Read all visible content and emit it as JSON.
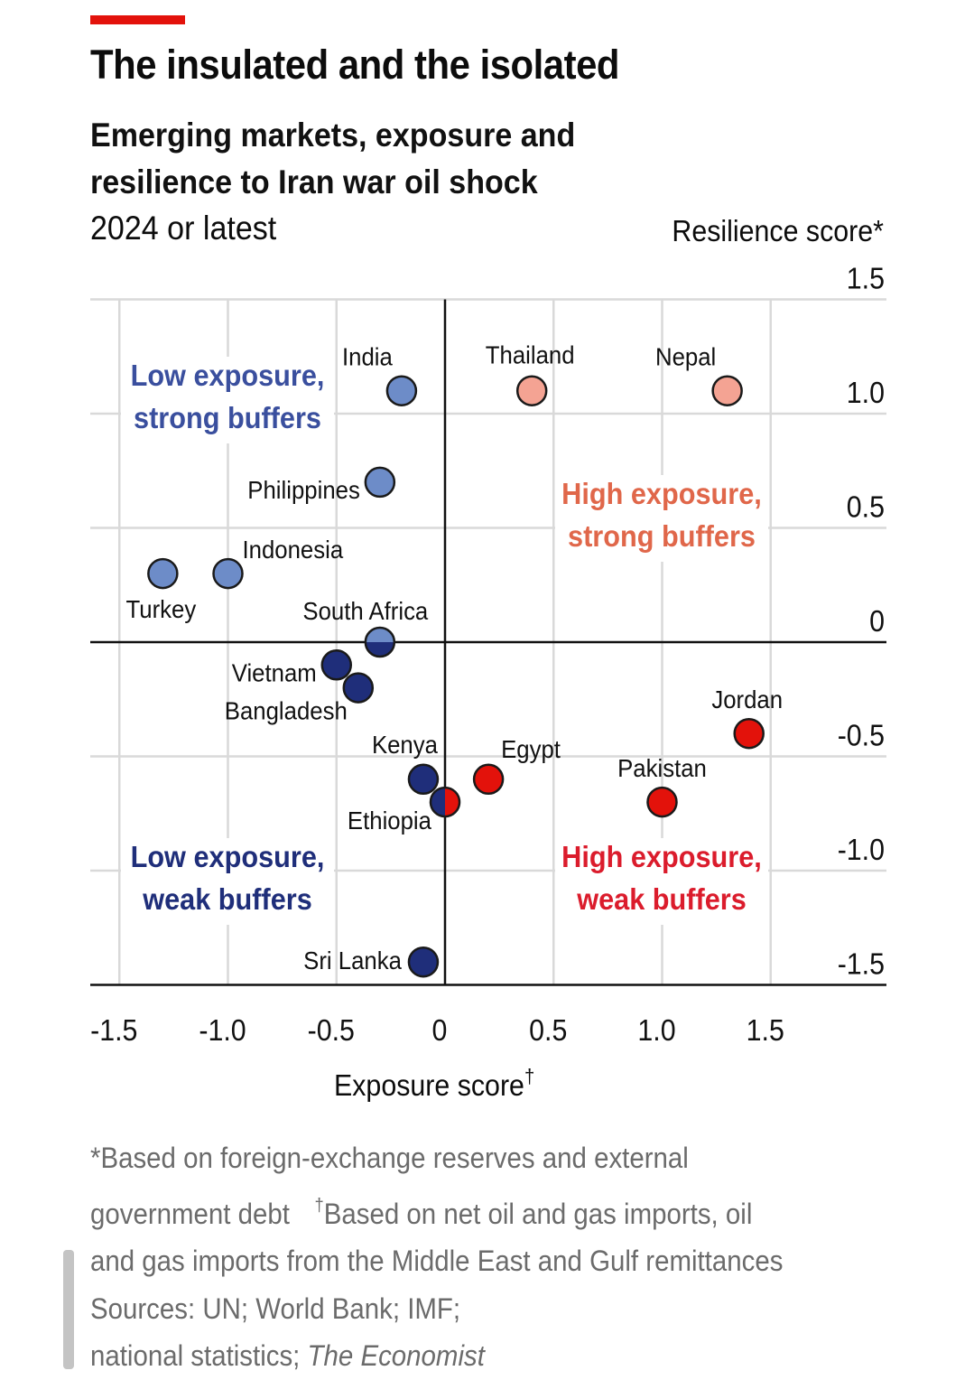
{
  "header": {
    "title": "The insulated and the isolated",
    "subtitle_lines": [
      "Emerging markets, exposure and",
      "resilience to Iran war oil shock"
    ],
    "period": "2024 or latest"
  },
  "colors": {
    "accent_red": "#e3120b",
    "low_exposure_strong_buffers": "#6d8cc8",
    "low_exposure_weak_buffers": "#1f2e7a",
    "high_exposure_strong_buffers": "#f4a393",
    "high_exposure_weak_buffers": "#e3120b",
    "label_low_strong": "#3a4f9e",
    "label_low_weak": "#1f2e7a",
    "label_high_strong": "#e0674a",
    "label_high_weak": "#db1c2c",
    "gridline": "#d9d9d9",
    "axis": "#111111",
    "footnote_text": "#6b6b6b"
  },
  "chart_data": {
    "type": "scatter",
    "title": "The insulated and the isolated",
    "subtitle": "Emerging markets, exposure and resilience to Iran war oil shock",
    "xlabel": "Exposure score",
    "xlabel_mark": "†",
    "ylabel": "Resilience score*",
    "xlim": [
      -1.625,
      2.05
    ],
    "ylim": [
      -1.5,
      1.5
    ],
    "x_ticks": [
      -1.5,
      -1.0,
      -0.5,
      0,
      0.5,
      1.0,
      1.5
    ],
    "x_tick_labels": [
      "-1.5",
      "-1.0",
      "-0.5",
      "0",
      "0.5",
      "1.0",
      "1.5"
    ],
    "y_ticks": [
      1.5,
      1.0,
      0.5,
      0,
      -0.5,
      -1.0,
      -1.5
    ],
    "y_tick_labels": [
      "1.5",
      "1.0",
      "0.5",
      "0",
      "-0.5",
      "-1.0",
      "-1.5"
    ],
    "grid": true,
    "quadrant_labels": [
      {
        "lines": [
          "Low exposure,",
          "strong buffers"
        ],
        "quadrant": "top-left",
        "color_key": "label_low_strong"
      },
      {
        "lines": [
          "High exposure,",
          "strong buffers"
        ],
        "quadrant": "top-right",
        "color_key": "label_high_strong"
      },
      {
        "lines": [
          "Low exposure,",
          "weak buffers"
        ],
        "quadrant": "bottom-left",
        "color_key": "label_low_weak"
      },
      {
        "lines": [
          "High exposure,",
          "weak buffers"
        ],
        "quadrant": "bottom-right",
        "color_key": "label_high_weak"
      }
    ],
    "points": [
      {
        "name": "India",
        "x": -0.2,
        "y": 1.1,
        "group": "low_exposure_strong_buffers",
        "label_pos": "above-left"
      },
      {
        "name": "Thailand",
        "x": 0.4,
        "y": 1.1,
        "group": "high_exposure_strong_buffers",
        "label_pos": "above"
      },
      {
        "name": "Nepal",
        "x": 1.3,
        "y": 1.1,
        "group": "high_exposure_strong_buffers",
        "label_pos": "above-left"
      },
      {
        "name": "Philippines",
        "x": -0.3,
        "y": 0.7,
        "group": "low_exposure_strong_buffers",
        "label_pos": "left"
      },
      {
        "name": "Indonesia",
        "x": -1.0,
        "y": 0.3,
        "group": "low_exposure_strong_buffers",
        "label_pos": "above-right"
      },
      {
        "name": "Turkey",
        "x": -1.3,
        "y": 0.3,
        "group": "low_exposure_strong_buffers",
        "label_pos": "below"
      },
      {
        "name": "South Africa",
        "x": -0.3,
        "y": 0.0,
        "group": "split_horizontal",
        "split": [
          "low_exposure_strong_buffers",
          "low_exposure_weak_buffers"
        ],
        "label_pos": "above"
      },
      {
        "name": "Vietnam",
        "x": -0.5,
        "y": -0.1,
        "group": "low_exposure_weak_buffers",
        "label_pos": "left"
      },
      {
        "name": "Bangladesh",
        "x": -0.4,
        "y": -0.2,
        "group": "low_exposure_weak_buffers",
        "label_pos": "below-left"
      },
      {
        "name": "Kenya",
        "x": -0.1,
        "y": -0.6,
        "group": "low_exposure_weak_buffers",
        "label_pos": "above-left"
      },
      {
        "name": "Egypt",
        "x": 0.2,
        "y": -0.6,
        "group": "high_exposure_weak_buffers",
        "label_pos": "above-right"
      },
      {
        "name": "Ethiopia",
        "x": 0.0,
        "y": -0.7,
        "group": "split_vertical",
        "split": [
          "low_exposure_weak_buffers",
          "high_exposure_weak_buffers"
        ],
        "label_pos": "below-left"
      },
      {
        "name": "Jordan",
        "x": 1.4,
        "y": -0.4,
        "group": "high_exposure_weak_buffers",
        "label_pos": "above"
      },
      {
        "name": "Pakistan",
        "x": 1.0,
        "y": -0.7,
        "group": "high_exposure_weak_buffers",
        "label_pos": "above"
      },
      {
        "name": "Sri Lanka",
        "x": -0.1,
        "y": -1.4,
        "group": "low_exposure_weak_buffers",
        "label_pos": "left"
      }
    ]
  },
  "footnote": {
    "line1": "*Based on foreign-exchange reserves and external",
    "line2a": "government debt",
    "line2_mark": "†",
    "line2b": "Based on net oil and gas imports, oil",
    "line3": "and gas imports from the Middle East and Gulf remittances",
    "line4": "Sources: UN; World Bank; IMF;",
    "line5a": "national statistics; ",
    "line5b": "The Economist"
  }
}
